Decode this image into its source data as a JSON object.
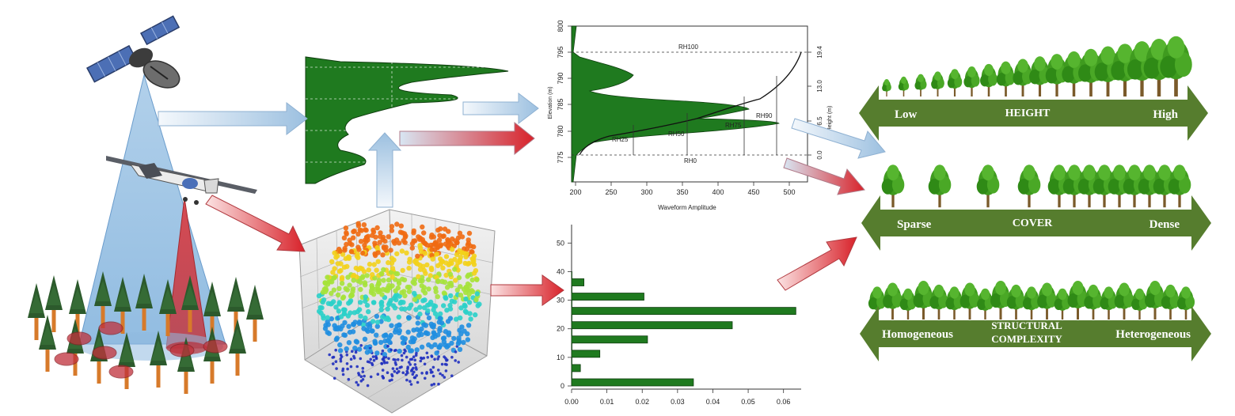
{
  "colors": {
    "green": "#1f7a1f",
    "banner": "#567d2e",
    "blue_arrow": "#b8d3ea",
    "red_arrow": "#d8222a",
    "beam_blue": "#7fb1dc",
    "beam_red": "#d9434a"
  },
  "waveform_plot": {
    "ylabel_left": "Elevation (m)",
    "ylabel_right": "Height (m)",
    "xlabel": "Waveform Amplitude",
    "x_ticks": [
      "200",
      "250",
      "300",
      "350",
      "400",
      "450",
      "500"
    ],
    "y_ticks_left": [
      "775",
      "780",
      "785",
      "790",
      "795",
      "800"
    ],
    "y_ticks_right": [
      "0.0",
      "6.5",
      "13.0",
      "19.4"
    ],
    "rh_labels": [
      "RH100",
      "RH90",
      "RH75",
      "RH50",
      "RH25",
      "RH0"
    ]
  },
  "histogram_plot": {
    "x_ticks": [
      "0.00",
      "0.01",
      "0.02",
      "0.03",
      "0.04",
      "0.05",
      "0.06"
    ],
    "y_ticks": [
      "0",
      "10",
      "20",
      "30",
      "40",
      "50"
    ]
  },
  "chart_data": {
    "type": "bar",
    "orientation": "horizontal",
    "bin_edges": [
      0,
      2.5,
      5,
      7.5,
      10,
      12.5,
      15,
      17.5,
      20,
      22.5,
      25,
      27.5,
      30,
      32.5,
      35,
      37.5,
      40
    ],
    "values": [
      0.0345,
      0.0,
      0.0025,
      0.0,
      0.008,
      0.0,
      0.0215,
      0.0,
      0.0455,
      0.0,
      0.0635,
      0.0,
      0.0205,
      0.0,
      0.0035,
      0.0
    ],
    "xlim": [
      0,
      0.065
    ],
    "ylim": [
      0,
      57
    ]
  },
  "panels": {
    "height": {
      "left": "Low",
      "center": "HEIGHT",
      "right": "High"
    },
    "cover": {
      "left": "Sparse",
      "center": "COVER",
      "right": "Dense"
    },
    "complexity": {
      "left": "Homogeneous",
      "center_line1": "STRUCTURAL",
      "center_line2": "COMPLEXITY",
      "right": "Heterogeneous"
    }
  }
}
